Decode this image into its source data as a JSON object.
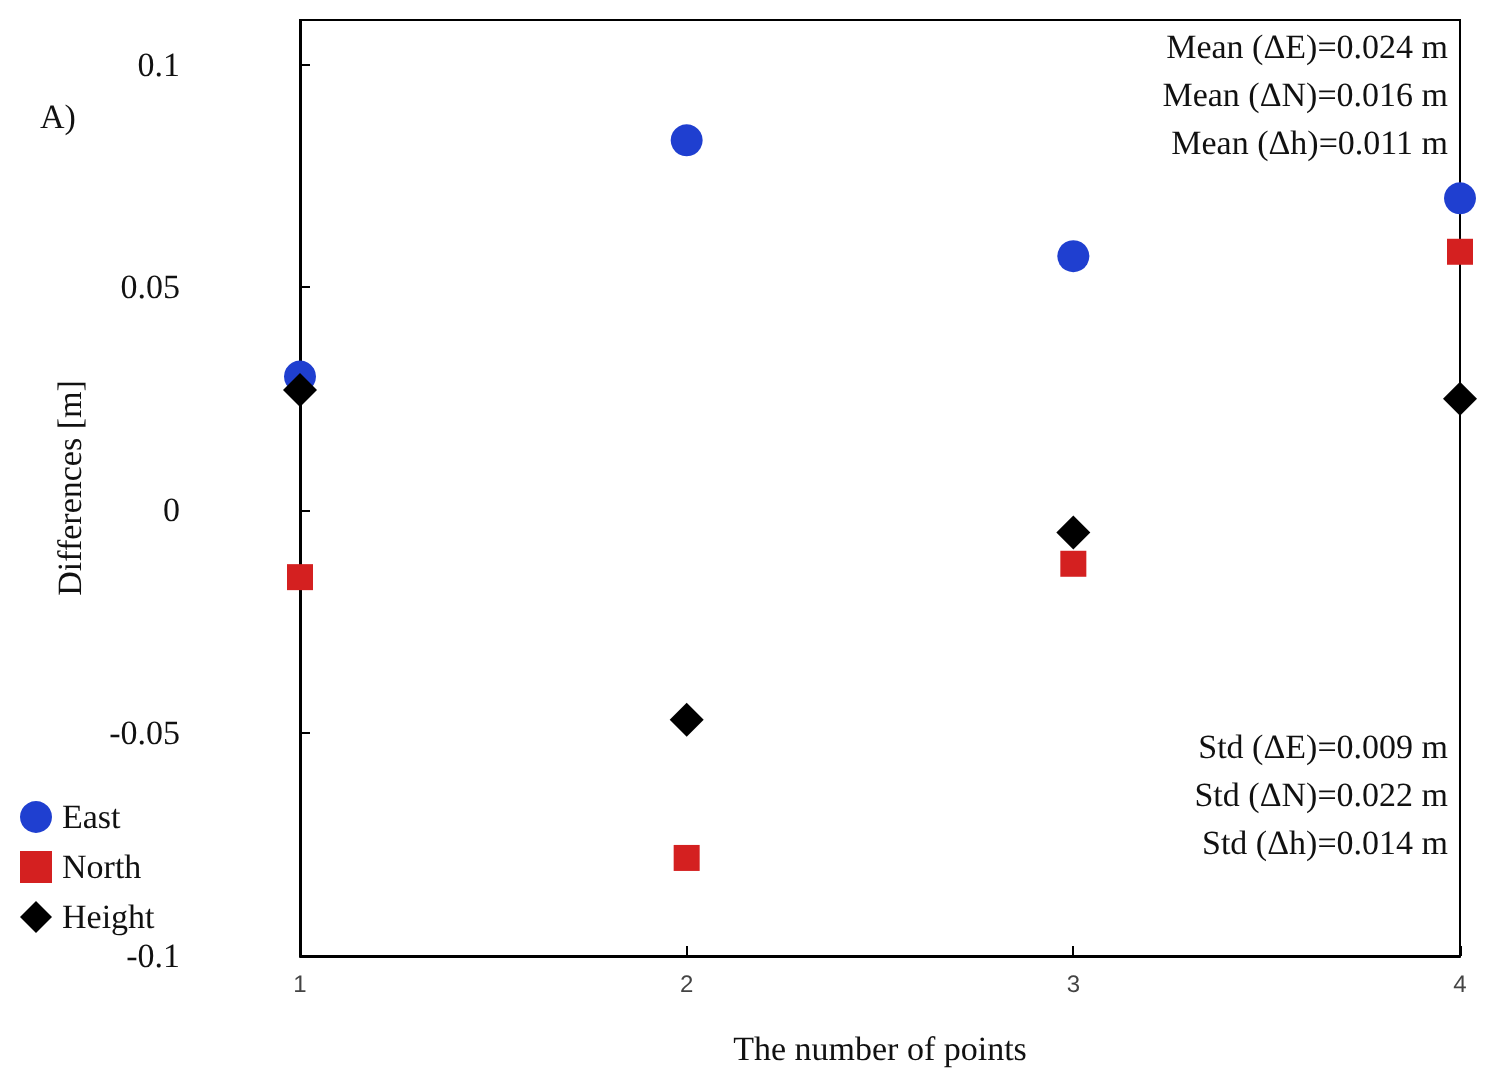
{
  "chart_data": {
    "type": "scatter",
    "title": "A)",
    "xlabel": "The number of points",
    "ylabel": "Differences [m]",
    "x": [
      1,
      2,
      3,
      4
    ],
    "series": [
      {
        "name": "East",
        "color": "#1f3fd0",
        "marker": "circle",
        "values": [
          0.03,
          0.083,
          0.057,
          0.07
        ]
      },
      {
        "name": "North",
        "color": "#d42020",
        "marker": "square",
        "values": [
          -0.015,
          -0.078,
          -0.012,
          0.058
        ]
      },
      {
        "name": "Height",
        "color": "#000000",
        "marker": "diamond",
        "values": [
          0.027,
          -0.047,
          -0.005,
          0.025
        ]
      }
    ],
    "xlim": [
      1,
      4
    ],
    "xticks": [
      1,
      2,
      3,
      4
    ],
    "ylim": [
      -0.1,
      0.11
    ],
    "yticks": [
      -0.1,
      -0.05,
      0,
      0.05,
      0.1
    ],
    "grid": false,
    "legend": "bottom left",
    "annotations": [
      "Mean (ΔE)=0.024 m",
      "Mean (ΔN)=0.016 m",
      "Mean (Δh)=0.011 m",
      "Std (ΔE)=0.009 m",
      "Std (ΔN)=0.022 m",
      "Std (Δh)=0.014 m"
    ]
  }
}
